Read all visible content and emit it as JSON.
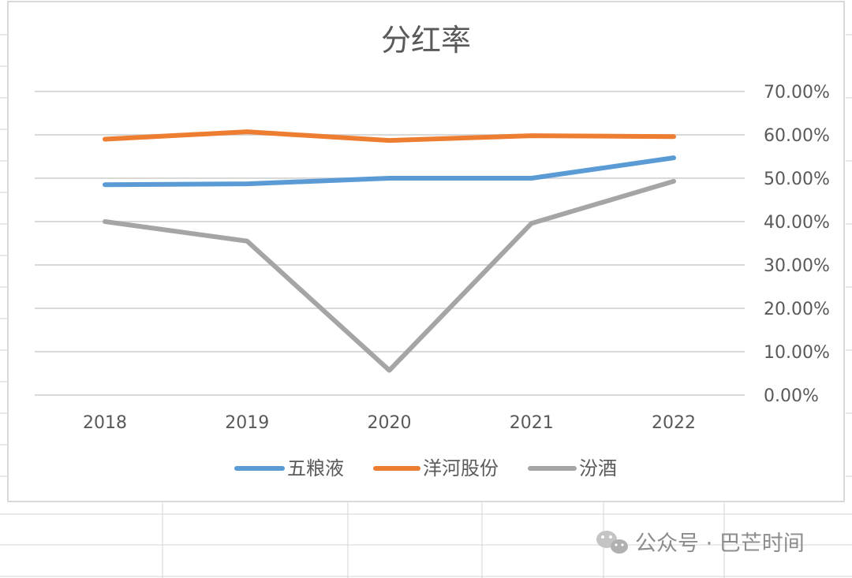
{
  "chart_data": {
    "type": "line",
    "title": "分红率",
    "categories": [
      "2018",
      "2019",
      "2020",
      "2021",
      "2022"
    ],
    "y_tick_labels": [
      "0.00%",
      "10.00%",
      "20.00%",
      "30.00%",
      "40.00%",
      "50.00%",
      "60.00%",
      "70.00%"
    ],
    "ylim": [
      0,
      0.7
    ],
    "y_axis_position": "right",
    "grid": true,
    "legend": "bottom",
    "series": [
      {
        "name": "五粮液",
        "color": "#5b9bd5",
        "values": [
          0.485,
          0.487,
          0.5,
          0.5,
          0.547
        ]
      },
      {
        "name": "洋河股份",
        "color": "#ed7d31",
        "values": [
          0.59,
          0.607,
          0.587,
          0.598,
          0.596
        ]
      },
      {
        "name": "汾酒",
        "color": "#a5a5a5",
        "values": [
          0.4,
          0.355,
          0.057,
          0.396,
          0.493
        ]
      }
    ]
  },
  "watermark": {
    "text": "公众号 · 巴芒时间",
    "icon": "wechat-icon"
  }
}
